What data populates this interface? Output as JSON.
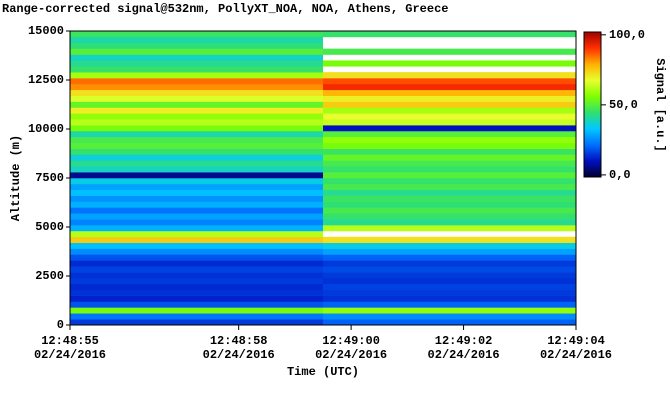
{
  "chart_data": {
    "type": "heatmap",
    "title": "Range-corrected signal@532nm, PollyXT_NOA, NOA, Athens, Greece",
    "x_label": "Time (UTC)",
    "y_label": "Altitude (m)",
    "colorbar_label": "Signal [a.u.]",
    "x": [
      55,
      59.5,
      64
    ],
    "xlim": [
      55,
      64
    ],
    "xticks": [
      {
        "value": 55,
        "label": "12:48:55",
        "date": "02/24/2016"
      },
      {
        "value": 58,
        "label": "12:48:58",
        "date": "02/24/2016"
      },
      {
        "value": 60,
        "label": "12:49:00",
        "date": "02/24/2016"
      },
      {
        "value": 62,
        "label": "12:49:02",
        "date": "02/24/2016"
      },
      {
        "value": 64,
        "label": "12:49:04",
        "date": "02/24/2016"
      }
    ],
    "bins": [
      0,
      300,
      600,
      900,
      1200,
      1500,
      1800,
      2100,
      2400,
      2700,
      3000,
      3300,
      3600,
      3900,
      4200,
      4500,
      4800,
      5100,
      5400,
      5700,
      6000,
      6300,
      6600,
      6900,
      7200,
      7500,
      7800,
      8100,
      8400,
      8700,
      9000,
      9300,
      9600,
      9900,
      10200,
      10500,
      10800,
      11100,
      11400,
      11700,
      12000,
      12300,
      12600,
      12900,
      13200,
      13500,
      13800,
      14100,
      14400,
      14700,
      15000
    ],
    "ylim": [
      0,
      15000
    ],
    "yticks": [
      0,
      2500,
      5000,
      7500,
      10000,
      12500,
      15000
    ],
    "z": [
      [
        15,
        22,
        55,
        18,
        12,
        14,
        13,
        15,
        14,
        16,
        13,
        18,
        25,
        32,
        75,
        62,
        30,
        24,
        28,
        22,
        30,
        26,
        32,
        28,
        35,
        6,
        38,
        42,
        36,
        45,
        50,
        48,
        40,
        55,
        62,
        58,
        70,
        52,
        66,
        72,
        82,
        85,
        60,
        45,
        42,
        38,
        50,
        44,
        40,
        46
      ],
      [
        20,
        25,
        58,
        20,
        14,
        15,
        16,
        14,
        15,
        17,
        15,
        20,
        28,
        35,
        72,
        null,
        62,
        42,
        45,
        48,
        44,
        46,
        42,
        48,
        45,
        50,
        45,
        48,
        52,
        46,
        55,
        58,
        50,
        10,
        64,
        68,
        60,
        75,
        70,
        78,
        92,
        88,
        72,
        null,
        55,
        null,
        48,
        null,
        null,
        45
      ]
    ],
    "clim": [
      -1.5,
      102
    ],
    "cticks": [
      {
        "value": 0,
        "label": "0,0"
      },
      {
        "value": 50,
        "label": "50,0"
      },
      {
        "value": 100,
        "label": "100,0"
      }
    ],
    "colormap": [
      "#000030",
      "#0010c0",
      "#0070ff",
      "#00c8ff",
      "#30e070",
      "#80ff00",
      "#e8ff30",
      "#ffb000",
      "#ff3000",
      "#a00000"
    ]
  }
}
